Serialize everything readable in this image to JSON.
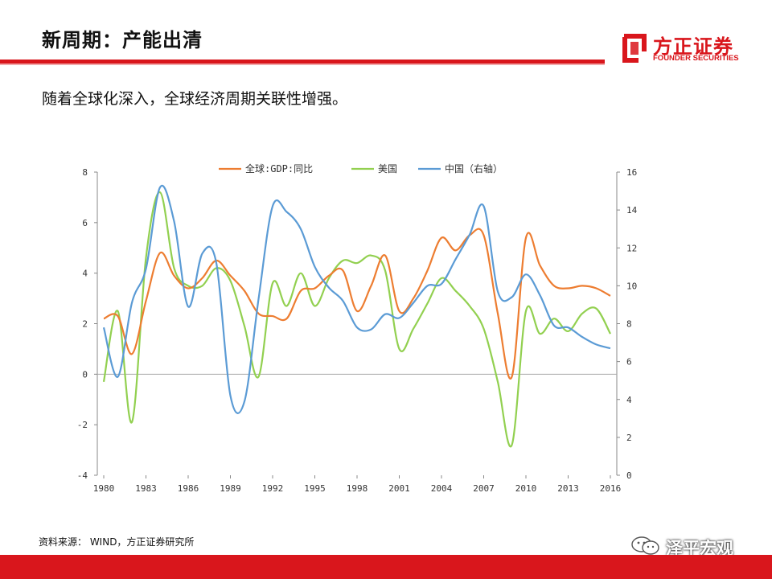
{
  "header": {
    "title": "新周期：产能出清"
  },
  "logo": {
    "cn": "方正证券",
    "en": "FOUNDER SECURITIES"
  },
  "subtitle": "随着全球化深入，全球经济周期关联性增强。",
  "source": "资料来源： WIND，方正证券研究所",
  "watermark": "泽平宏观",
  "colors": {
    "brand_red": "#d9161c",
    "global": "#ed7d31",
    "us": "#92d050",
    "china": "#5b9bd5"
  },
  "chart_data": {
    "type": "line",
    "x": [
      1980,
      1981,
      1982,
      1983,
      1984,
      1985,
      1986,
      1987,
      1988,
      1989,
      1990,
      1991,
      1992,
      1993,
      1994,
      1995,
      1996,
      1997,
      1998,
      1999,
      2000,
      2001,
      2002,
      2003,
      2004,
      2005,
      2006,
      2007,
      2008,
      2009,
      2010,
      2011,
      2012,
      2013,
      2014,
      2015,
      2016
    ],
    "xticks": [
      "1980",
      "1983",
      "1986",
      "1989",
      "1992",
      "1995",
      "1998",
      "2001",
      "2004",
      "2007",
      "2010",
      "2013",
      "2016"
    ],
    "y_left": {
      "min": -4,
      "max": 8,
      "ticks": [
        "-4",
        "-2",
        "0",
        "2",
        "4",
        "6",
        "8"
      ]
    },
    "y_right": {
      "min": 0,
      "max": 16,
      "ticks": [
        "0",
        "2",
        "4",
        "6",
        "8",
        "10",
        "12",
        "14",
        "16"
      ]
    },
    "series": [
      {
        "name": "全球:GDP:同比",
        "axis": "left",
        "color": "#ed7d31",
        "values": [
          2.2,
          2.3,
          0.8,
          2.9,
          4.8,
          3.9,
          3.4,
          3.8,
          4.5,
          3.9,
          3.3,
          2.4,
          2.3,
          2.2,
          3.3,
          3.4,
          3.9,
          4.1,
          2.5,
          3.5,
          4.7,
          2.5,
          3.0,
          4.1,
          5.4,
          4.9,
          5.5,
          5.5,
          2.4,
          -0.1,
          5.4,
          4.3,
          3.5,
          3.4,
          3.5,
          3.4,
          3.1
        ]
      },
      {
        "name": "美国",
        "axis": "left",
        "color": "#92d050",
        "values": [
          -0.3,
          2.5,
          -1.9,
          4.6,
          7.2,
          4.2,
          3.5,
          3.5,
          4.2,
          3.7,
          1.9,
          -0.1,
          3.6,
          2.7,
          4.0,
          2.7,
          3.8,
          4.5,
          4.4,
          4.7,
          4.1,
          1.0,
          1.8,
          2.8,
          3.8,
          3.3,
          2.7,
          1.8,
          -0.3,
          -2.8,
          2.5,
          1.6,
          2.2,
          1.7,
          2.4,
          2.6,
          1.6
        ]
      },
      {
        "name": "中国（右轴）",
        "axis": "right",
        "color": "#5b9bd5",
        "values": [
          7.8,
          5.2,
          9.1,
          10.9,
          15.2,
          13.4,
          8.9,
          11.7,
          11.2,
          4.2,
          3.9,
          9.3,
          14.2,
          13.9,
          13.0,
          11.0,
          9.9,
          9.2,
          7.8,
          7.7,
          8.5,
          8.3,
          9.1,
          10.0,
          10.1,
          11.4,
          12.7,
          14.2,
          9.7,
          9.4,
          10.6,
          9.5,
          7.9,
          7.8,
          7.3,
          6.9,
          6.7
        ]
      }
    ]
  }
}
